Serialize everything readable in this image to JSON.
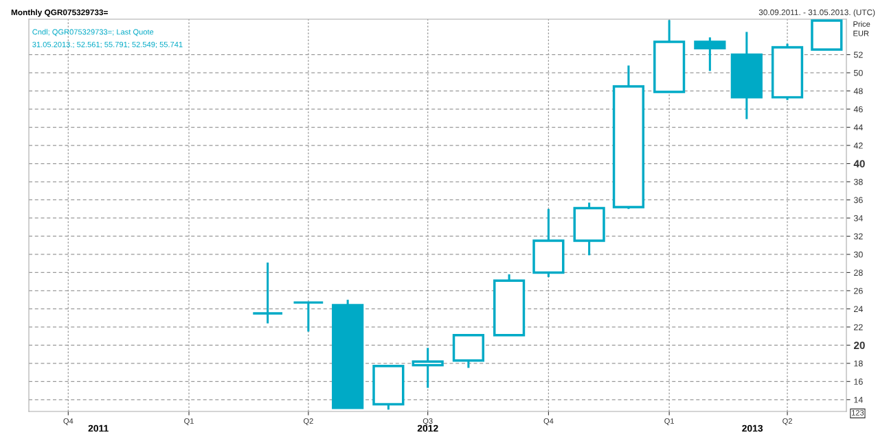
{
  "chart_data": {
    "type": "candlestick",
    "title": "Monthly QGR075329733=",
    "subtitle": "30.09.2011. - 31.05.2013. (UTC)",
    "ylabel": "Price\nEUR",
    "x": [
      "2012-03",
      "2012-04",
      "2012-05",
      "2012-06",
      "2012-07",
      "2012-08",
      "2012-09",
      "2012-10",
      "2012-11",
      "2012-12",
      "2013-01",
      "2013-02",
      "2013-03",
      "2013-04",
      "2013-05"
    ],
    "ohlc": [
      [
        23.5,
        29.1,
        22.4,
        23.5
      ],
      [
        24.7,
        24.7,
        21.5,
        24.7
      ],
      [
        24.4,
        25.0,
        13.0,
        13.1
      ],
      [
        13.5,
        17.8,
        12.9,
        17.7
      ],
      [
        17.8,
        19.7,
        15.3,
        18.2
      ],
      [
        18.3,
        21.2,
        17.5,
        21.1
      ],
      [
        21.1,
        27.8,
        21.1,
        27.1
      ],
      [
        28.0,
        35.0,
        27.5,
        31.5
      ],
      [
        31.5,
        35.7,
        29.9,
        35.1
      ],
      [
        35.2,
        50.8,
        35.0,
        48.5
      ],
      [
        47.9,
        55.8,
        47.9,
        53.4
      ],
      [
        53.4,
        53.9,
        50.2,
        52.7
      ],
      [
        52.0,
        54.5,
        44.9,
        47.3
      ],
      [
        47.3,
        53.2,
        47.0,
        52.8
      ],
      [
        52.561,
        55.791,
        52.549,
        55.741
      ]
    ],
    "color": "#00aac6",
    "xlim": [
      "2011-09",
      "2013-05-16"
    ],
    "xticks": [
      {
        "value": "2011-10",
        "label": "Q4"
      },
      {
        "value": "2012-01",
        "label": "Q1"
      },
      {
        "value": "2012-04",
        "label": "Q2"
      },
      {
        "value": "2012-07",
        "label": "Q3"
      },
      {
        "value": "2012-10",
        "label": "Q4"
      },
      {
        "value": "2013-01",
        "label": "Q1"
      },
      {
        "value": "2013-04",
        "label": "Q2"
      }
    ],
    "ylim": [
      12.7,
      55.9
    ],
    "yticks": [
      14,
      16,
      18,
      20,
      22,
      24,
      26,
      28,
      30,
      32,
      34,
      36,
      38,
      40,
      42,
      44,
      46,
      48,
      50,
      52
    ],
    "grid": true,
    "annotations": [
      "Cndl; QGR075329733=; Last Quote",
      "31.05.2013.; 52.561; 55.791; 52.549; 55.741",
      "2011",
      "2012",
      "2013",
      "123"
    ]
  }
}
